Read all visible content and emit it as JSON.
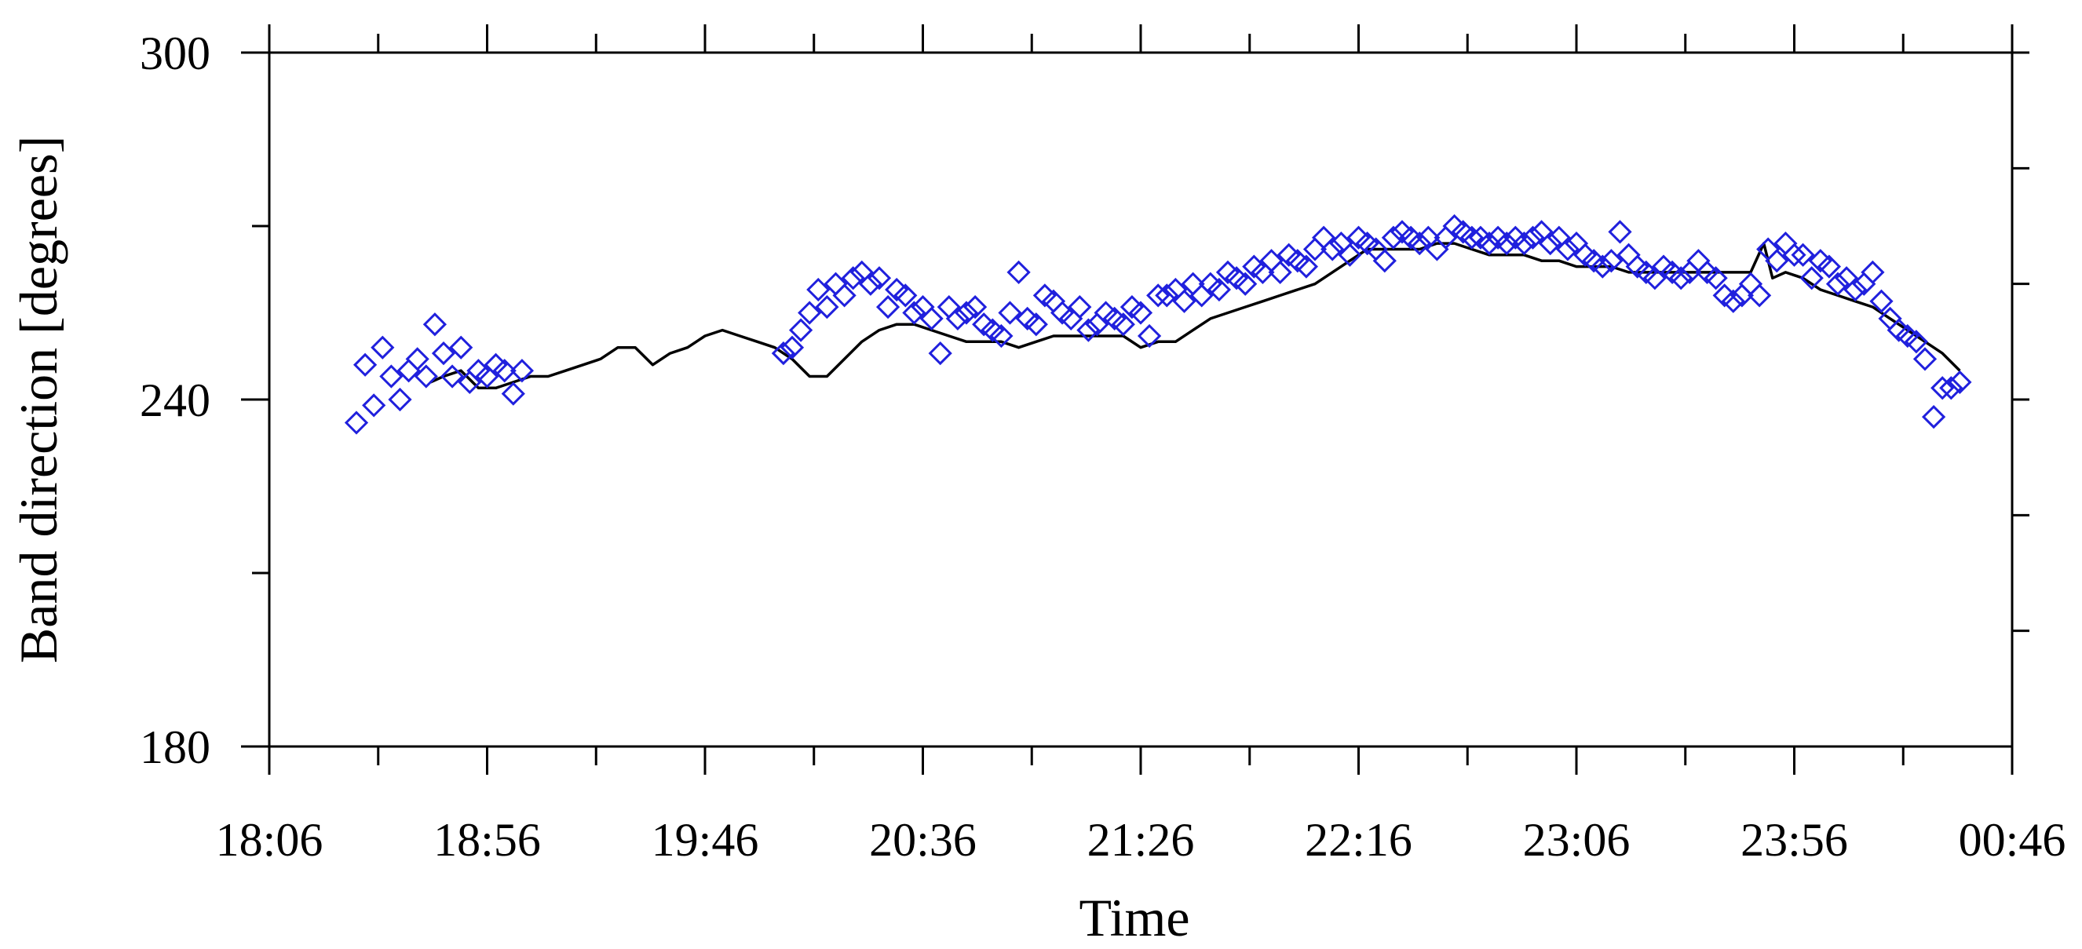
{
  "chart_data": {
    "type": "scatter",
    "xlabel": "Time",
    "ylabel": "Band direction [degrees]",
    "x_tick_labels": [
      "18:06",
      "18:56",
      "19:46",
      "20:36",
      "21:26",
      "22:16",
      "23:06",
      "23:56",
      "00:46"
    ],
    "x_tick_values": [
      0,
      50,
      100,
      150,
      200,
      250,
      300,
      350,
      400
    ],
    "x_minor_every": 25,
    "xlim": [
      0,
      400
    ],
    "y_tick_labels": [
      "180",
      "240",
      "300"
    ],
    "y_tick_values": [
      180,
      240,
      300
    ],
    "ylim": [
      180,
      300
    ],
    "right_axis_ticks": [
      200,
      220,
      240,
      260,
      280,
      300
    ],
    "grid": false,
    "series": [
      {
        "kind": "markers",
        "marker": "diamond",
        "color": "#2020dd",
        "points": [
          [
            20,
            236
          ],
          [
            22,
            246
          ],
          [
            24,
            239
          ],
          [
            26,
            249
          ],
          [
            28,
            244
          ],
          [
            30,
            240
          ],
          [
            32,
            245
          ],
          [
            34,
            247
          ],
          [
            36,
            244
          ],
          [
            38,
            253
          ],
          [
            40,
            248
          ],
          [
            42,
            244
          ],
          [
            44,
            249
          ],
          [
            46,
            243
          ],
          [
            48,
            245
          ],
          [
            50,
            244
          ],
          [
            52,
            246
          ],
          [
            54,
            245
          ],
          [
            56,
            241
          ],
          [
            58,
            245
          ],
          [
            118,
            248
          ],
          [
            120,
            249
          ],
          [
            122,
            252
          ],
          [
            124,
            255
          ],
          [
            126,
            259
          ],
          [
            128,
            256
          ],
          [
            130,
            260
          ],
          [
            132,
            258
          ],
          [
            134,
            261
          ],
          [
            136,
            262
          ],
          [
            138,
            260
          ],
          [
            140,
            261
          ],
          [
            142,
            256
          ],
          [
            144,
            259
          ],
          [
            146,
            258
          ],
          [
            148,
            255
          ],
          [
            150,
            256
          ],
          [
            152,
            254
          ],
          [
            154,
            248
          ],
          [
            156,
            256
          ],
          [
            158,
            254
          ],
          [
            160,
            255
          ],
          [
            162,
            256
          ],
          [
            164,
            253
          ],
          [
            166,
            252
          ],
          [
            168,
            251
          ],
          [
            170,
            255
          ],
          [
            172,
            262
          ],
          [
            174,
            254
          ],
          [
            176,
            253
          ],
          [
            178,
            258
          ],
          [
            180,
            257
          ],
          [
            182,
            255
          ],
          [
            184,
            254
          ],
          [
            186,
            256
          ],
          [
            188,
            252
          ],
          [
            190,
            253
          ],
          [
            192,
            255
          ],
          [
            194,
            254
          ],
          [
            196,
            253
          ],
          [
            198,
            256
          ],
          [
            200,
            255
          ],
          [
            202,
            251
          ],
          [
            204,
            258
          ],
          [
            206,
            258
          ],
          [
            208,
            259
          ],
          [
            210,
            257
          ],
          [
            212,
            260
          ],
          [
            214,
            258
          ],
          [
            216,
            260
          ],
          [
            218,
            259
          ],
          [
            220,
            262
          ],
          [
            222,
            261
          ],
          [
            224,
            260
          ],
          [
            226,
            263
          ],
          [
            228,
            262
          ],
          [
            230,
            264
          ],
          [
            232,
            262
          ],
          [
            234,
            265
          ],
          [
            236,
            264
          ],
          [
            238,
            263
          ],
          [
            240,
            266
          ],
          [
            242,
            268
          ],
          [
            244,
            266
          ],
          [
            246,
            267
          ],
          [
            248,
            265
          ],
          [
            250,
            268
          ],
          [
            252,
            267
          ],
          [
            254,
            266
          ],
          [
            256,
            264
          ],
          [
            258,
            268
          ],
          [
            260,
            269
          ],
          [
            262,
            268
          ],
          [
            264,
            267
          ],
          [
            266,
            268
          ],
          [
            268,
            266
          ],
          [
            270,
            268
          ],
          [
            272,
            270
          ],
          [
            274,
            269
          ],
          [
            276,
            268
          ],
          [
            278,
            268
          ],
          [
            280,
            267
          ],
          [
            282,
            268
          ],
          [
            284,
            267
          ],
          [
            286,
            268
          ],
          [
            288,
            267
          ],
          [
            290,
            268
          ],
          [
            292,
            269
          ],
          [
            294,
            267
          ],
          [
            296,
            268
          ],
          [
            298,
            266
          ],
          [
            300,
            267
          ],
          [
            302,
            265
          ],
          [
            304,
            264
          ],
          [
            306,
            263
          ],
          [
            308,
            264
          ],
          [
            310,
            269
          ],
          [
            312,
            265
          ],
          [
            314,
            263
          ],
          [
            316,
            262
          ],
          [
            318,
            261
          ],
          [
            320,
            263
          ],
          [
            322,
            262
          ],
          [
            324,
            261
          ],
          [
            326,
            262
          ],
          [
            328,
            264
          ],
          [
            330,
            262
          ],
          [
            332,
            261
          ],
          [
            334,
            258
          ],
          [
            336,
            257
          ],
          [
            338,
            258
          ],
          [
            340,
            260
          ],
          [
            342,
            258
          ],
          [
            344,
            266
          ],
          [
            346,
            264
          ],
          [
            348,
            267
          ],
          [
            350,
            265
          ],
          [
            352,
            265
          ],
          [
            354,
            261
          ],
          [
            356,
            264
          ],
          [
            358,
            263
          ],
          [
            360,
            260
          ],
          [
            362,
            261
          ],
          [
            364,
            259
          ],
          [
            366,
            260
          ],
          [
            368,
            262
          ],
          [
            370,
            257
          ],
          [
            372,
            254
          ],
          [
            374,
            252
          ],
          [
            376,
            251
          ],
          [
            378,
            250
          ],
          [
            380,
            247
          ],
          [
            382,
            237
          ],
          [
            384,
            242
          ],
          [
            386,
            242
          ],
          [
            388,
            243
          ]
        ]
      },
      {
        "kind": "line",
        "color": "#000000",
        "points": [
          [
            37,
            243
          ],
          [
            40,
            244
          ],
          [
            44,
            245
          ],
          [
            48,
            242
          ],
          [
            52,
            242
          ],
          [
            56,
            243
          ],
          [
            60,
            244
          ],
          [
            64,
            244
          ],
          [
            68,
            245
          ],
          [
            72,
            246
          ],
          [
            76,
            247
          ],
          [
            80,
            249
          ],
          [
            84,
            249
          ],
          [
            88,
            246
          ],
          [
            92,
            248
          ],
          [
            96,
            249
          ],
          [
            100,
            251
          ],
          [
            104,
            252
          ],
          [
            108,
            251
          ],
          [
            112,
            250
          ],
          [
            116,
            249
          ],
          [
            120,
            247
          ],
          [
            124,
            244
          ],
          [
            128,
            244
          ],
          [
            132,
            247
          ],
          [
            136,
            250
          ],
          [
            140,
            252
          ],
          [
            144,
            253
          ],
          [
            148,
            253
          ],
          [
            152,
            252
          ],
          [
            156,
            251
          ],
          [
            160,
            250
          ],
          [
            164,
            250
          ],
          [
            168,
            250
          ],
          [
            172,
            249
          ],
          [
            176,
            250
          ],
          [
            180,
            251
          ],
          [
            184,
            251
          ],
          [
            188,
            251
          ],
          [
            192,
            251
          ],
          [
            196,
            251
          ],
          [
            200,
            249
          ],
          [
            204,
            250
          ],
          [
            208,
            250
          ],
          [
            212,
            252
          ],
          [
            216,
            254
          ],
          [
            220,
            255
          ],
          [
            224,
            256
          ],
          [
            228,
            257
          ],
          [
            232,
            258
          ],
          [
            236,
            259
          ],
          [
            240,
            260
          ],
          [
            244,
            262
          ],
          [
            248,
            264
          ],
          [
            252,
            266
          ],
          [
            256,
            266
          ],
          [
            260,
            266
          ],
          [
            264,
            266
          ],
          [
            268,
            267
          ],
          [
            272,
            267
          ],
          [
            276,
            266
          ],
          [
            280,
            265
          ],
          [
            284,
            265
          ],
          [
            288,
            265
          ],
          [
            292,
            264
          ],
          [
            296,
            264
          ],
          [
            300,
            263
          ],
          [
            304,
            263
          ],
          [
            308,
            263
          ],
          [
            312,
            262
          ],
          [
            316,
            262
          ],
          [
            320,
            262
          ],
          [
            324,
            262
          ],
          [
            328,
            262
          ],
          [
            332,
            262
          ],
          [
            336,
            262
          ],
          [
            340,
            262
          ],
          [
            343,
            267
          ],
          [
            345,
            261
          ],
          [
            348,
            262
          ],
          [
            352,
            261
          ],
          [
            356,
            259
          ],
          [
            360,
            258
          ],
          [
            364,
            257
          ],
          [
            368,
            256
          ],
          [
            372,
            254
          ],
          [
            376,
            252
          ],
          [
            380,
            250
          ],
          [
            384,
            248
          ],
          [
            388,
            245
          ]
        ]
      }
    ]
  }
}
